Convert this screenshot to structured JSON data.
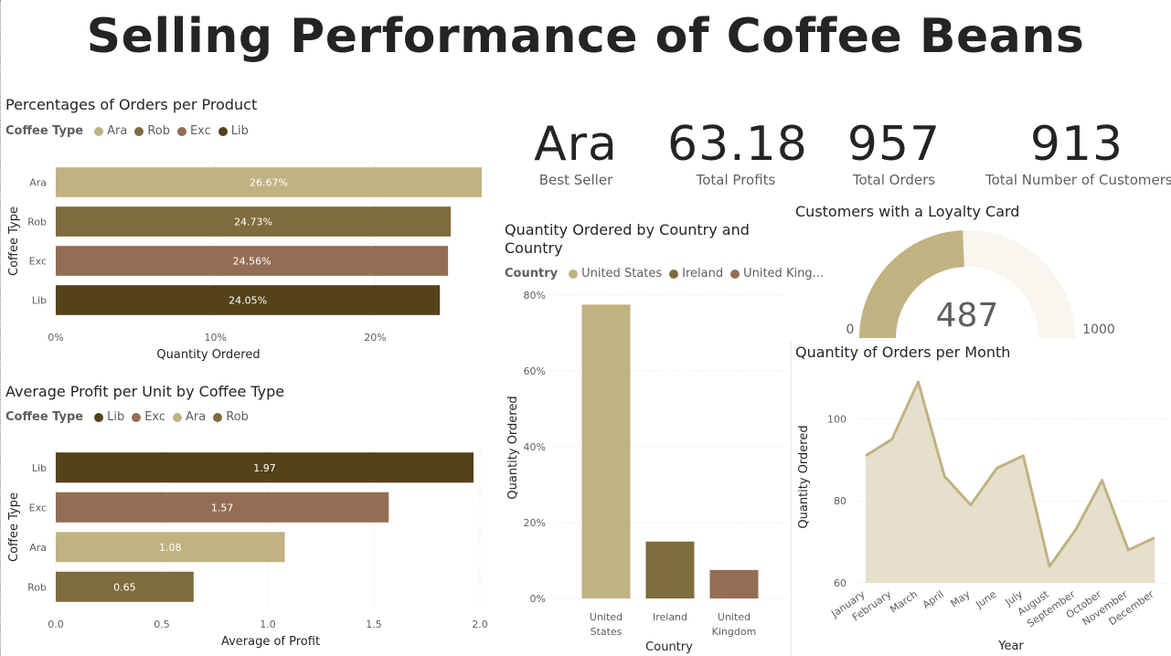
{
  "title": "Selling Performance of Coffee Beans",
  "colors": {
    "Ara": "#c1b282",
    "Rob": "#7f6b3c",
    "Exc": "#946e54",
    "Lib": "#544219",
    "area": "#e6dfcc",
    "line": "#c1b282",
    "gauge_bg": "#f9f5ef"
  },
  "kpis": [
    {
      "value": "Ara",
      "label": "Best Seller"
    },
    {
      "value": "63.18",
      "label": "Total Profits"
    },
    {
      "value": "957",
      "label": "Total Orders"
    },
    {
      "value": "913",
      "label": "Total Number of Customers"
    }
  ],
  "chart_data": [
    {
      "type": "bar",
      "orientation": "horizontal",
      "title": "Percentages of Orders per Product",
      "legend_title": "Coffee Type",
      "legend": [
        "Ara",
        "Rob",
        "Exc",
        "Lib"
      ],
      "categories": [
        "Ara",
        "Rob",
        "Exc",
        "Lib"
      ],
      "values": [
        26.67,
        24.73,
        24.56,
        24.05
      ],
      "data_labels": [
        "26.67%",
        "24.73%",
        "24.56%",
        "24.05%"
      ],
      "xlabel": "Quantity Ordered",
      "ylabel": "Coffee Type",
      "xticks": [
        "0%",
        "10%",
        "20%"
      ],
      "xlim": [
        0,
        26.67
      ]
    },
    {
      "type": "bar",
      "orientation": "horizontal",
      "title": "Average Profit per Unit by Coffee Type",
      "legend_title": "Coffee Type",
      "legend": [
        "Lib",
        "Exc",
        "Ara",
        "Rob"
      ],
      "categories": [
        "Lib",
        "Exc",
        "Ara",
        "Rob"
      ],
      "values": [
        1.97,
        1.57,
        1.08,
        0.65
      ],
      "data_labels": [
        "1.97",
        "1.57",
        "1.08",
        "0.65"
      ],
      "xlabel": "Average of Profit",
      "ylabel": "Coffee Type",
      "xticks": [
        "0.0",
        "0.5",
        "1.0",
        "1.5",
        "2.0"
      ],
      "xlim": [
        0,
        2.0
      ]
    },
    {
      "type": "bar",
      "orientation": "vertical",
      "title": "Quantity Ordered by Country and Country",
      "legend_title": "Country",
      "legend": [
        "United States",
        "Ireland",
        "United King..."
      ],
      "categories": [
        [
          "United",
          "States"
        ],
        [
          "Ireland"
        ],
        [
          "United",
          "Kingdom"
        ]
      ],
      "values": [
        77.5,
        15,
        7.5
      ],
      "xlabel": "Country",
      "ylabel": "Quantity Ordered",
      "yticks": [
        "0%",
        "20%",
        "40%",
        "60%",
        "80%"
      ],
      "ylim": [
        0,
        80
      ]
    },
    {
      "type": "gauge",
      "title": "Customers with a Loyalty Card",
      "value": 487,
      "min": 0,
      "max": 1000,
      "value_label": "487",
      "min_label": "0",
      "max_label": "1000"
    },
    {
      "type": "area",
      "title": "Quantity of Orders per Month",
      "x": [
        "January",
        "February",
        "March",
        "April",
        "May",
        "June",
        "July",
        "August",
        "September",
        "October",
        "November",
        "December"
      ],
      "values": [
        91,
        95,
        109,
        86,
        79,
        88,
        91,
        64,
        73,
        85,
        68,
        71
      ],
      "xlabel": "Year",
      "ylabel": "Quantity Ordered",
      "yticks": [
        "60",
        "80",
        "100"
      ],
      "ylim": [
        60,
        113
      ]
    }
  ]
}
